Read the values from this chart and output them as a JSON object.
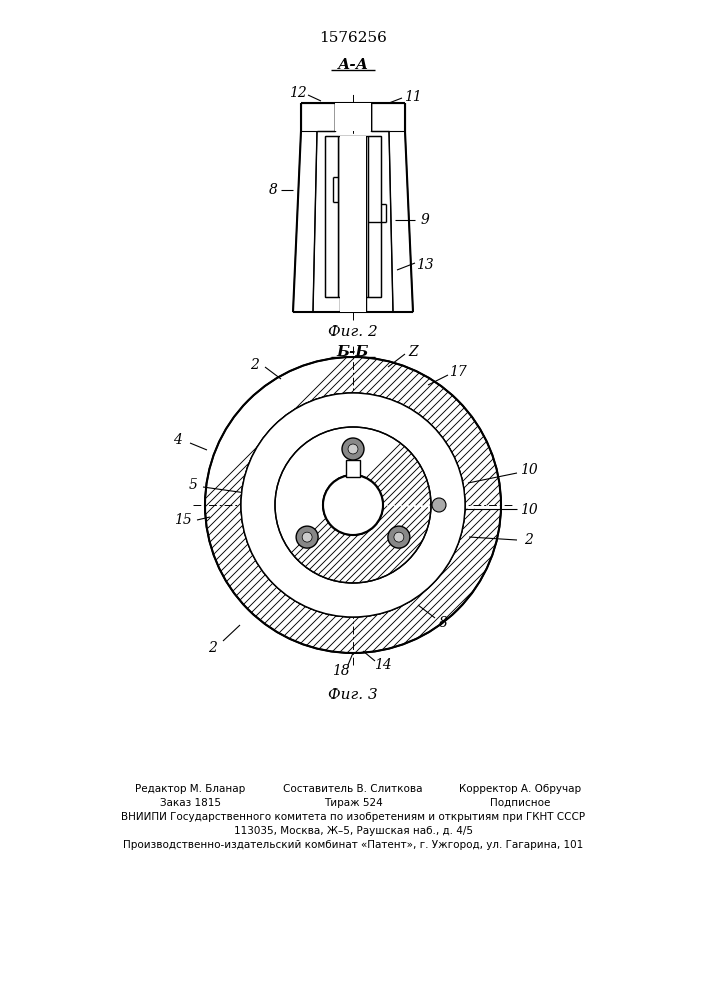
{
  "patent_number": "1576256",
  "fig2_label": "Фиг. 2",
  "fig3_label": "Фиг. 3",
  "section_aa": "А-А",
  "section_bb": "Б-Б",
  "bg_color": "#ffffff",
  "line_color": "#000000",
  "footer_col1_line1": "Редактор М. Бланар",
  "footer_col2_line1": "Составитель В. Слиткова",
  "footer_col3_line1": "Корректор А. Обручар",
  "footer_col1_line2": "Заказ 1815",
  "footer_col2_line2": "Тираж 524",
  "footer_col3_line2": "Подписное",
  "footer_line3": "ВНИИПИ Государственного комитета по изобретениям и открытиям при ГКНТ СССР",
  "footer_line4": "113035, Москва, Ж–5, Раушская наб., д. 4/5",
  "footer_line5": "Производственно-издательский комбинат «Патент», г. Ужгород, ул. Гагарина, 101"
}
